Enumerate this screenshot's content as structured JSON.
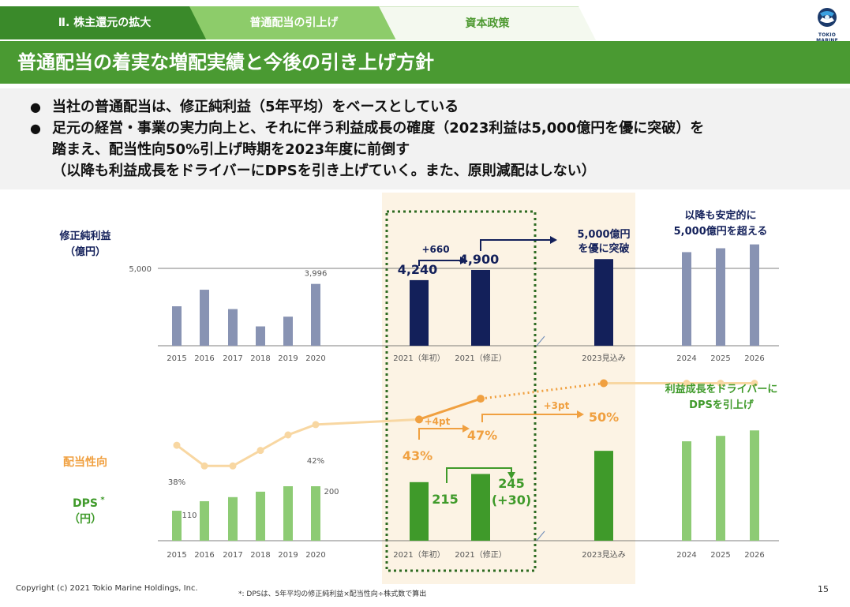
{
  "header": {
    "tabs": [
      "Ⅱ. 株主還元の拡大",
      "普通配当の引上げ",
      "資本政策"
    ],
    "logo_text": "TOKIO MARINE",
    "title": "普通配当の着実な増配実績と今後の引き上げ方針"
  },
  "bullets": {
    "b1": "当社の普通配当は、修正純利益（5年平均）をベースとしている",
    "b2_line1": "足元の経営・事業の実力向上と、それに伴う利益成長の確度（2023利益は5,000億円を優に突破）を",
    "b2_line2": "踏まえ、配当性向50%引上げ時期を2023年度に前倒す",
    "b2_line3": "（以降も利益成長をドライバーにDPSを引き上げていく。また、原則減配はしない）"
  },
  "colors": {
    "hist_profit": "#8893b3",
    "navy": "#13205a",
    "hist_dps": "#8dcb74",
    "dark_green": "#3f9a2a",
    "orange": "#f0a040",
    "light_orange": "#f8d7a2",
    "highlight_bg": "#fcf3e4",
    "dot_green": "#2e6b22"
  },
  "chart_data": [
    {
      "type": "bar",
      "title": "修正純利益（億円）",
      "ylabel_line1": "修正純利益",
      "ylabel_line2": "（億円）",
      "reference_tick": "5,000",
      "reference_value": 5000,
      "categories": [
        "2015",
        "2016",
        "2017",
        "2018",
        "2019",
        "2020",
        "2021（年初）",
        "2021（修正）",
        "2023見込み",
        "2024",
        "2025",
        "2026"
      ],
      "values": [
        2550,
        3620,
        2370,
        1250,
        1880,
        3996,
        4240,
        4900,
        5600,
        6050,
        6300,
        6550
      ],
      "value_labels": [
        "",
        "",
        "",
        "",
        "",
        "3,996",
        "4,240",
        "4,900",
        "",
        "",
        "",
        ""
      ],
      "annotations": {
        "increase": "+660",
        "surpass_line1": "5,000億円",
        "surpass_line2": "を優に突破",
        "future_line1": "以降も安定的に",
        "future_line2": "5,000億円を超える"
      }
    },
    {
      "type": "bar+line",
      "title": "DPS・配当性向",
      "payout_label": "配当性向",
      "dps_label": "DPS",
      "dps_sup": "*",
      "dps_unit": "（円）",
      "categories": [
        "2015",
        "2016",
        "2017",
        "2018",
        "2019",
        "2020",
        "2021（年初）",
        "2021（修正）",
        "2023見込み",
        "2024",
        "2025",
        "2026"
      ],
      "dps": [
        110,
        145,
        160,
        180,
        200,
        200,
        215,
        245,
        330,
        365,
        385,
        405
      ],
      "payout_ratio": [
        38,
        34,
        34,
        37,
        40,
        42,
        43,
        47,
        50,
        50,
        50,
        50
      ],
      "value_labels": {
        "dps_2015": "110",
        "dps_2020": "200",
        "dps_2021_initial": "215",
        "dps_2021_revised_line1": "245",
        "dps_2021_revised_line2": "(+30)",
        "payout_2015": "38%",
        "payout_2020": "42%",
        "payout_2021_initial": "43%",
        "payout_2021_revised": "47%",
        "payout_2023": "50%"
      },
      "annotations": {
        "plus4": "+4pt",
        "plus3": "+3pt",
        "driver_line1": "利益成長をドライバーに",
        "driver_line2": "DPSを引上げ"
      }
    }
  ],
  "footer": {
    "copyright": "Copyright (c) 2021 Tokio Marine Holdings, Inc.",
    "note": "*: DPSは、5年平均の修正純利益×配当性向÷株式数で算出",
    "page": "15"
  }
}
